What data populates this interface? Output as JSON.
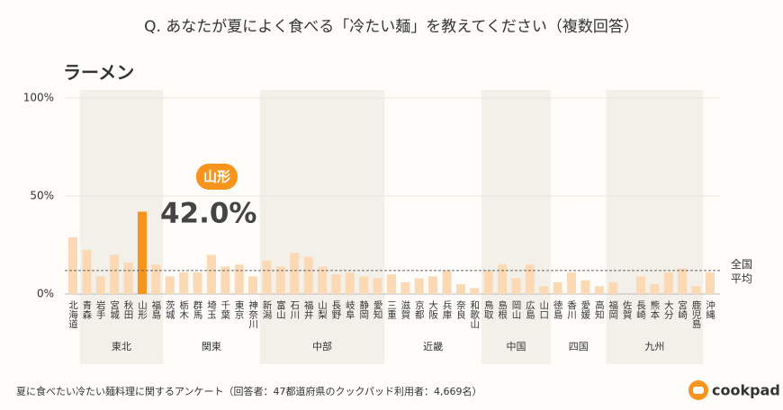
{
  "chart_data": {
    "type": "bar",
    "title": "Q. あなたが夏によく食べる「冷たい麺」を教えてください（複数回答）",
    "subtitle": "ラーメン",
    "categories": [
      "北海道",
      "青森",
      "岩手",
      "宮城",
      "秋田",
      "山形",
      "福島",
      "茨城",
      "栃木",
      "群馬",
      "埼玉",
      "千葉",
      "東京",
      "神奈川",
      "新潟",
      "富山",
      "石川",
      "福井",
      "山梨",
      "長野",
      "岐阜",
      "静岡",
      "愛知",
      "三重",
      "滋賀",
      "京都",
      "大阪",
      "兵庫",
      "奈良",
      "和歌山",
      "鳥取",
      "島根",
      "岡山",
      "広島",
      "山口",
      "徳島",
      "香川",
      "愛媛",
      "高知",
      "福岡",
      "佐賀",
      "長崎",
      "熊本",
      "大分",
      "宮崎",
      "鹿児島",
      "沖縄"
    ],
    "values": [
      29,
      22.5,
      9,
      20,
      16,
      42.0,
      15,
      9,
      11,
      11,
      20,
      14,
      15,
      9,
      17,
      14,
      21,
      19,
      14,
      10,
      11,
      9,
      8,
      10,
      6,
      8,
      9,
      12,
      5,
      3,
      12,
      15,
      8,
      15,
      4,
      6,
      11,
      7,
      4,
      6,
      0,
      9,
      5,
      11,
      13,
      4,
      11
    ],
    "value_labels": [
      null,
      null,
      null,
      null,
      null,
      "42.0%",
      null,
      null,
      null,
      null,
      null,
      null,
      null,
      null,
      null,
      null,
      null,
      null,
      null,
      null,
      null,
      null,
      null,
      null,
      null,
      null,
      null,
      null,
      null,
      null,
      null,
      null,
      null,
      null,
      null,
      null,
      null,
      null,
      null,
      null,
      null,
      null,
      null,
      null,
      null,
      null,
      null
    ],
    "color": "#fbd9b4",
    "highlight_color": "#f7941d",
    "groups": [
      {
        "label": "東北",
        "from": 1,
        "to": 6
      },
      {
        "label": "関東",
        "from": 7,
        "to": 13
      },
      {
        "label": "中部",
        "from": 14,
        "to": 22
      },
      {
        "label": "近畿",
        "from": 23,
        "to": 29
      },
      {
        "label": "中国",
        "from": 30,
        "to": 34
      },
      {
        "label": "四国",
        "from": 35,
        "to": 38
      },
      {
        "label": "九州",
        "from": 39,
        "to": 45
      }
    ],
    "average": {
      "value": 12,
      "label": "全国平均"
    },
    "ylim": [
      0,
      100
    ],
    "yticks": [
      {
        "value": 0,
        "label": "0%"
      },
      {
        "value": 50,
        "label": "50%"
      },
      {
        "value": 100,
        "label": "100%"
      }
    ],
    "grid": true,
    "footnote": "夏に食べたい冷たい麺料理に関するアンケート（回答者：47都道府県のクックパッド利用者：4,669名）",
    "brand": "cookpad"
  }
}
